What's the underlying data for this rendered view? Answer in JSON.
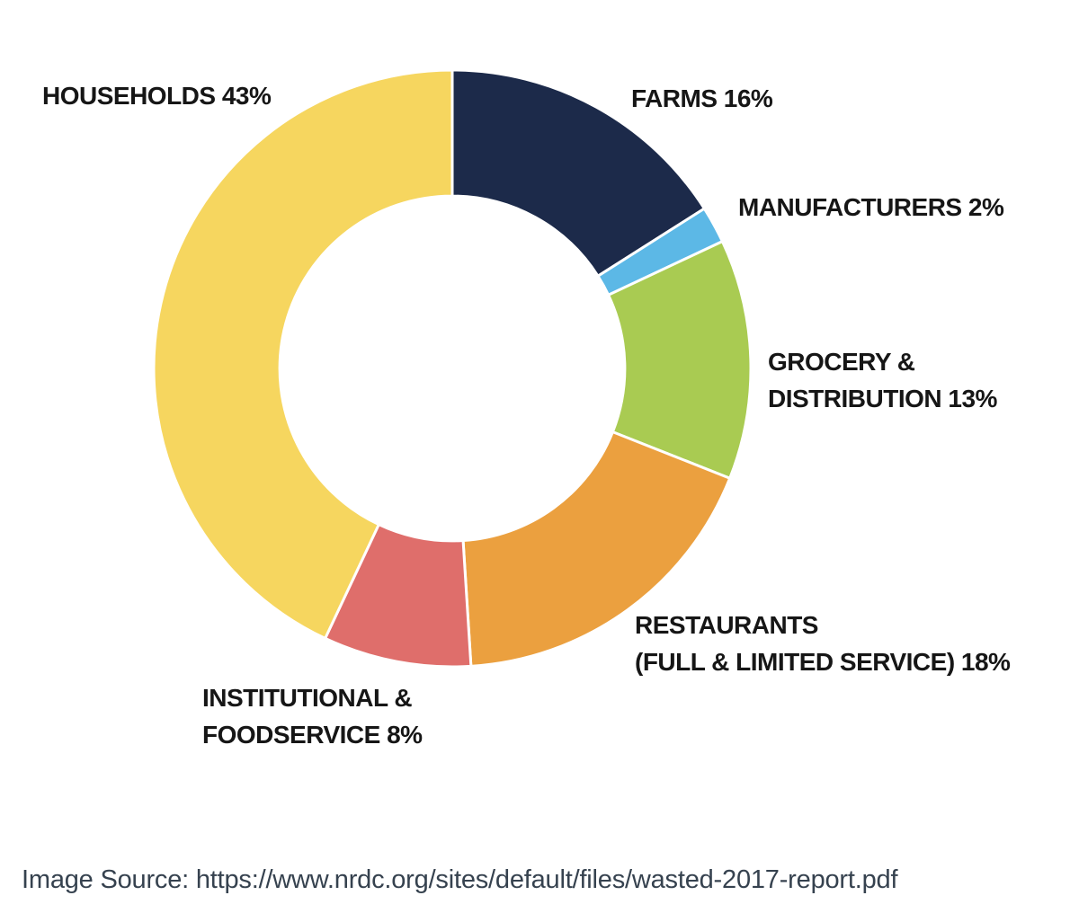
{
  "chart_data": {
    "type": "pie",
    "subtype": "donut",
    "title": "",
    "categories": [
      "Farms",
      "Manufacturers",
      "Grocery & Distribution",
      "Restaurants (Full & Limited Service)",
      "Institutional & Foodservice",
      "Households"
    ],
    "values": [
      16,
      2,
      13,
      18,
      8,
      43
    ],
    "colors": [
      "#1c2a4a",
      "#5cb8e6",
      "#a9cb52",
      "#eba03f",
      "#df6e6b",
      "#f6d65f"
    ],
    "slice_ids": [
      "farms",
      "manufacturers",
      "grocery-distribution",
      "restaurants",
      "institutional-foodservice",
      "households"
    ],
    "start_angle_deg": 0,
    "direction": "clockwise",
    "inner_radius_ratio": 0.578,
    "gap_stroke_color": "#ffffff",
    "gap_stroke_width": 3,
    "legend_position": "none",
    "labels_on_chart": [
      "FARMS 16%",
      "MANUFACTURERS 2%",
      "GROCERY & DISTRIBUTION 13%",
      "RESTAURANTS (FULL & LIMITED SERVICE) 18%",
      "INSTITUTIONAL & FOODSERVICE 8%",
      "HOUSEHOLDS 43%"
    ]
  },
  "labels": {
    "households": {
      "line1": "HOUSEHOLDS 43%"
    },
    "farms": {
      "line1": "FARMS 16%"
    },
    "manufacturers": {
      "line1": "MANUFACTURERS 2%"
    },
    "grocery": {
      "line1": "GROCERY &",
      "line2": "DISTRIBUTION 13%"
    },
    "restaurants": {
      "line1": "RESTAURANTS",
      "line2": "(FULL & LIMITED SERVICE) 18%"
    },
    "institutional": {
      "line1": "INSTITUTIONAL &",
      "line2": "FOODSERVICE 8%"
    }
  },
  "caption": {
    "text": "Image Source: https://www.nrdc.org/sites/default/files/wasted-2017-report.pdf",
    "color": "#36424f"
  },
  "colors": {
    "label_text": "#161616",
    "background": "#ffffff"
  }
}
